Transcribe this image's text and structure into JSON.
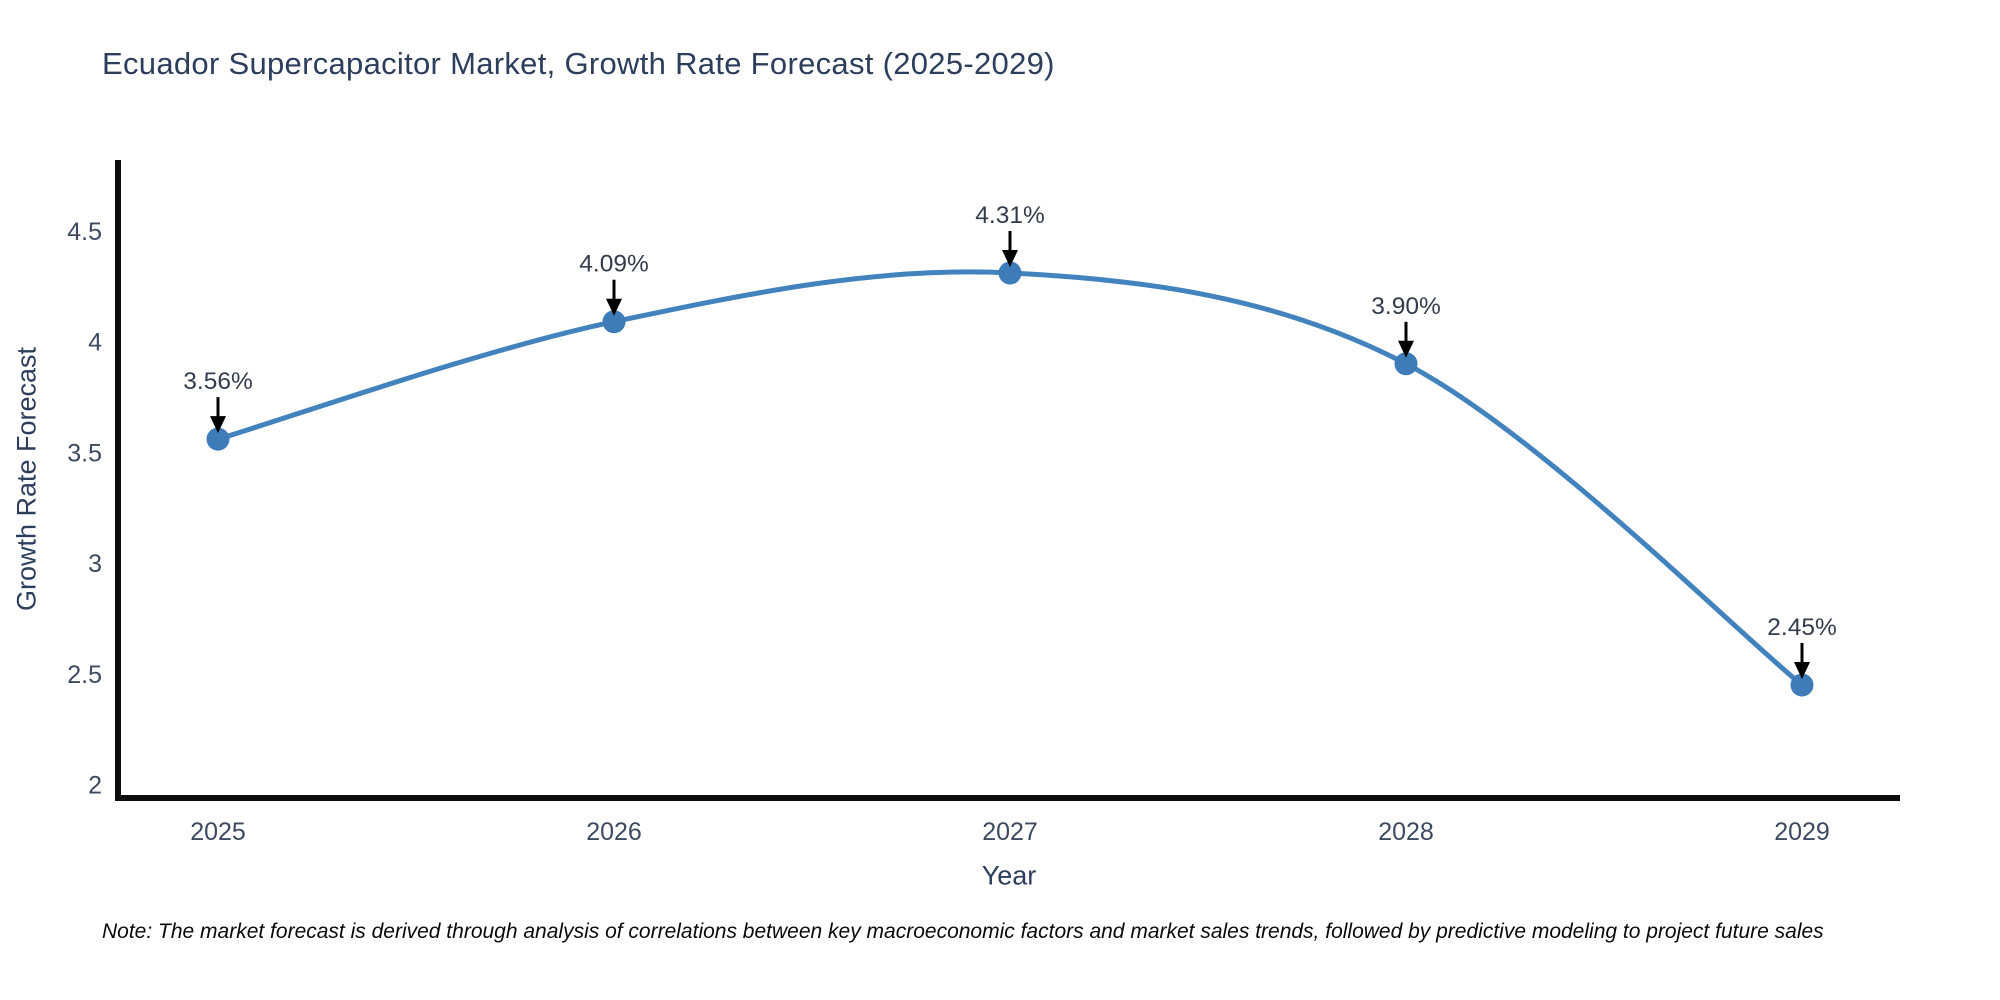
{
  "chart_data": {
    "type": "line",
    "title": "Ecuador Supercapacitor Market, Growth Rate Forecast (2025-2029)",
    "xlabel": "Year",
    "ylabel": "Growth Rate Forecast",
    "x": [
      2025,
      2026,
      2027,
      2028,
      2029
    ],
    "values": [
      3.56,
      4.09,
      4.31,
      3.9,
      2.45
    ],
    "point_labels": [
      "3.56%",
      "4.09%",
      "4.31%",
      "3.90%",
      "2.45%"
    ],
    "yticks": [
      2,
      2.5,
      3,
      3.5,
      4,
      4.5
    ],
    "ytick_labels": [
      "2",
      "2.5",
      "3",
      "3.5",
      "4",
      "4.5"
    ],
    "ylim": [
      1.94,
      4.82
    ],
    "line_shape": "spline",
    "grid": false,
    "legend": "none",
    "note": "Note: The market forecast is derived through analysis of correlations between key macroeconomic factors and market sales trends, followed by predictive modeling to project future sales",
    "colors": {
      "line": "#4383bd",
      "marker": "#3d7cb8",
      "axis_line": "#0d0d0d",
      "title_text": "#2c3e5c",
      "tick_text": "#3d4a60",
      "annotation_text": "#333c4d",
      "arrow": "#000000",
      "note_text": "#0a0a0a",
      "background": "#ffffff"
    }
  }
}
